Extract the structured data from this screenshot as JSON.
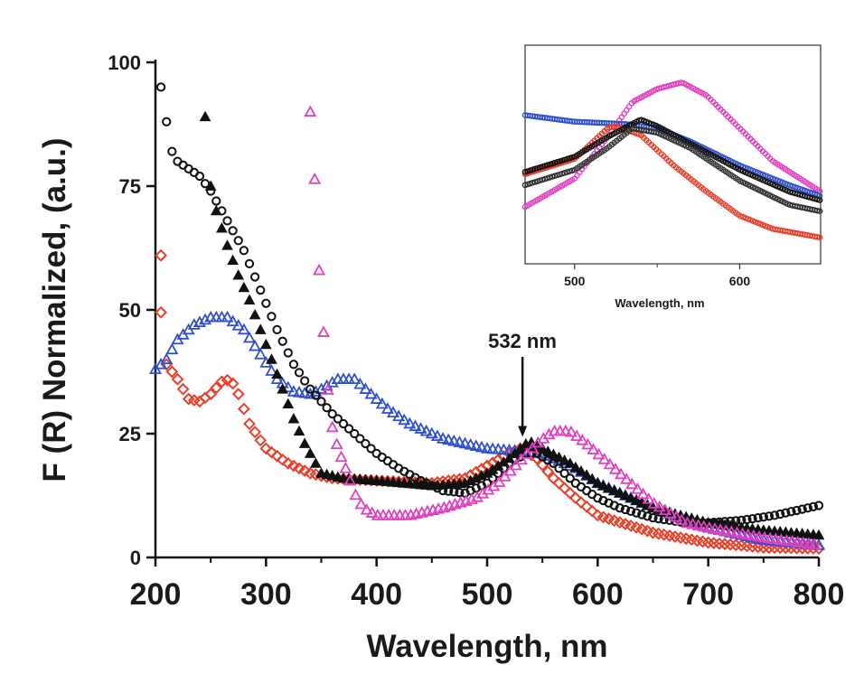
{
  "chart_data": [
    {
      "type": "scatter",
      "xlabel": "Wavelength, nm",
      "ylabel": "F (R) Normalized, (a.u.)",
      "xlim": [
        200,
        800
      ],
      "ylim": [
        0,
        100
      ],
      "xticks": [
        "200",
        "300",
        "400",
        "500",
        "600",
        "700",
        "800"
      ],
      "yticks": [
        "0",
        "25",
        "50",
        "75",
        "100"
      ],
      "grid": false,
      "annotation": {
        "text": "532 nm",
        "x": 532,
        "arrow_to_y": 24
      },
      "series": [
        {
          "marker": "diamond-open",
          "color": "#e8402a",
          "x": [
            205,
            210,
            220,
            230,
            240,
            250,
            260,
            268,
            275,
            285,
            300,
            320,
            340,
            360,
            400,
            450,
            480,
            500,
            520,
            530,
            545,
            560,
            580,
            600,
            650,
            700,
            750,
            800
          ],
          "y": [
            49.5,
            39,
            36,
            32,
            31.5,
            33,
            35.5,
            36,
            33,
            27,
            22,
            19,
            17,
            16,
            15.5,
            15,
            16,
            18.5,
            21,
            22,
            20,
            16,
            12,
            8.5,
            5,
            3,
            2,
            1.8
          ],
          "extra_points": [
            [
              205,
              61
            ]
          ]
        },
        {
          "marker": "triangle-open",
          "color": "#3050d0",
          "x": [
            200,
            210,
            220,
            235,
            250,
            265,
            280,
            295,
            310,
            325,
            340,
            350,
            365,
            380,
            395,
            410,
            430,
            460,
            500,
            530,
            550,
            580,
            600,
            650,
            700,
            750,
            800
          ],
          "y": [
            38,
            40,
            44,
            47,
            48.5,
            48.5,
            46,
            41,
            36,
            33.5,
            33,
            34,
            36,
            36,
            33,
            30,
            27,
            24,
            22,
            21.5,
            21,
            18,
            15,
            10,
            6,
            3.5,
            2.5
          ]
        },
        {
          "marker": "circle-open",
          "color": "#111111",
          "x": [
            205,
            210,
            215,
            220,
            240,
            250,
            265,
            280,
            295,
            310,
            325,
            340,
            360,
            380,
            400,
            420,
            440,
            460,
            480,
            500,
            520,
            535,
            545,
            560,
            580,
            600,
            620,
            650,
            680,
            700,
            730,
            760,
            800
          ],
          "y": [
            95,
            88,
            82,
            80,
            77,
            74,
            68,
            62,
            54,
            46,
            39,
            34,
            29,
            25,
            21,
            18,
            15.5,
            13.5,
            13,
            15,
            19,
            21,
            21,
            19,
            15,
            12,
            10,
            8,
            7,
            7,
            7.5,
            8.5,
            10.5
          ]
        },
        {
          "marker": "triangle-filled",
          "color": "#111111",
          "x": [
            245,
            250,
            255,
            265,
            275,
            285,
            295,
            305,
            315,
            325,
            335,
            345,
            350,
            370,
            400,
            450,
            480,
            500,
            520,
            538,
            550,
            575,
            600,
            650,
            700,
            750,
            800
          ],
          "y": [
            89,
            75,
            70,
            63,
            57,
            52,
            46,
            40,
            34,
            28,
            23,
            19,
            17,
            16,
            15.5,
            14.5,
            15,
            17,
            20,
            23.5,
            22,
            19,
            15,
            10,
            7,
            5.5,
            4.5
          ]
        },
        {
          "marker": "triangle-open",
          "color": "#e040c0",
          "x": [
            340,
            345,
            348,
            352,
            358,
            365,
            372,
            380,
            388,
            400,
            430,
            460,
            490,
            510,
            530,
            545,
            560,
            575,
            590,
            610,
            630,
            650,
            680,
            700,
            750,
            800
          ],
          "y": [
            90,
            73,
            58,
            45.5,
            28,
            22,
            18,
            13,
            10,
            8.5,
            8.5,
            10,
            12,
            15,
            19.5,
            23,
            25.5,
            25.5,
            23,
            19,
            15,
            11,
            7,
            6,
            4,
            2.5
          ]
        }
      ]
    },
    {
      "type": "scatter",
      "role": "inset",
      "xlabel": "Wavelength, nm",
      "xlim": [
        470,
        649
      ],
      "ylim": [
        0,
        1
      ],
      "xticks": [
        "500",
        "600"
      ],
      "series": [
        {
          "color": "#e040c0",
          "x": [
            470,
            500,
            520,
            535,
            550,
            565,
            580,
            600,
            620,
            649
          ],
          "y": [
            0.26,
            0.39,
            0.58,
            0.74,
            0.8,
            0.83,
            0.77,
            0.62,
            0.47,
            0.33
          ]
        },
        {
          "color": "#3050d0",
          "x": [
            470,
            500,
            530,
            550,
            570,
            600,
            630,
            649
          ],
          "y": [
            0.68,
            0.65,
            0.64,
            0.62,
            0.56,
            0.45,
            0.36,
            0.31
          ]
        },
        {
          "color": "#e8402a",
          "x": [
            470,
            500,
            520,
            525,
            540,
            560,
            580,
            600,
            620,
            649
          ],
          "y": [
            0.41,
            0.48,
            0.62,
            0.63,
            0.59,
            0.45,
            0.33,
            0.22,
            0.16,
            0.12
          ]
        },
        {
          "color": "#111111",
          "x": [
            470,
            500,
            520,
            540,
            550,
            570,
            600,
            630,
            649
          ],
          "y": [
            0.42,
            0.49,
            0.58,
            0.66,
            0.63,
            0.55,
            0.43,
            0.33,
            0.29
          ]
        },
        {
          "color": "#333333",
          "x": [
            470,
            500,
            520,
            535,
            550,
            570,
            600,
            630,
            649
          ],
          "y": [
            0.36,
            0.43,
            0.53,
            0.62,
            0.6,
            0.53,
            0.38,
            0.27,
            0.24
          ]
        }
      ]
    }
  ]
}
